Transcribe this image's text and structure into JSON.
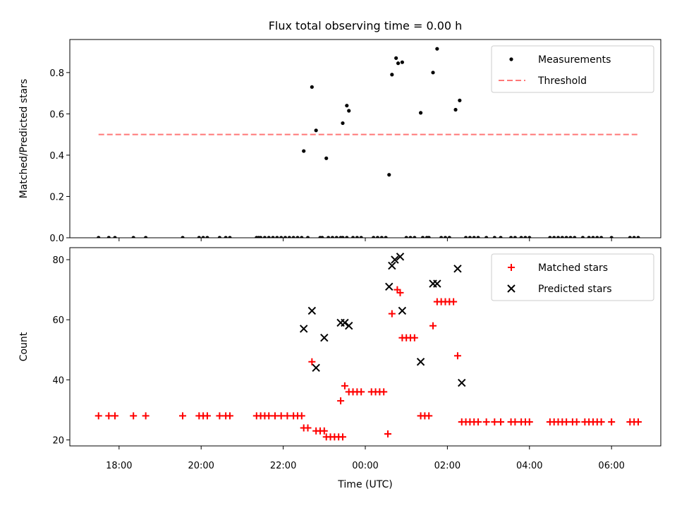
{
  "title": "Flux total observing time = 0.00 h",
  "chart_data": [
    {
      "type": "scatter",
      "ylabel": "Matched/Predicted stars",
      "ylim": [
        0.0,
        0.96
      ],
      "yticks": [
        "0.0",
        "0.2",
        "0.4",
        "0.6",
        "0.8"
      ],
      "legend_position": "top-right",
      "series": [
        {
          "name": "Measurements",
          "marker": "dot",
          "color": "#000000",
          "points": [
            [
              -6.5,
              0
            ],
            [
              -6.25,
              0
            ],
            [
              -6.1,
              0
            ],
            [
              -5.65,
              0
            ],
            [
              -5.35,
              0
            ],
            [
              -4.45,
              0
            ],
            [
              -4.05,
              0
            ],
            [
              -3.95,
              0
            ],
            [
              -3.85,
              0
            ],
            [
              -3.55,
              0
            ],
            [
              -3.4,
              0
            ],
            [
              -3.3,
              0
            ],
            [
              -2.65,
              0
            ],
            [
              -2.6,
              0
            ],
            [
              -2.55,
              0
            ],
            [
              -2.45,
              0
            ],
            [
              -2.35,
              0
            ],
            [
              -2.25,
              0
            ],
            [
              -2.15,
              0
            ],
            [
              -2.05,
              0
            ],
            [
              -1.95,
              0
            ],
            [
              -1.85,
              0
            ],
            [
              -1.75,
              0
            ],
            [
              -1.65,
              0
            ],
            [
              -1.55,
              0
            ],
            [
              -1.5,
              0.42
            ],
            [
              -1.4,
              0
            ],
            [
              -1.3,
              0.73
            ],
            [
              -1.2,
              0.52
            ],
            [
              -1.1,
              0
            ],
            [
              -1.05,
              0
            ],
            [
              -0.95,
              0.385
            ],
            [
              -0.9,
              0
            ],
            [
              -0.8,
              0
            ],
            [
              -0.7,
              0
            ],
            [
              -0.6,
              0
            ],
            [
              -0.55,
              0
            ],
            [
              -0.45,
              0
            ],
            [
              -0.55,
              0.555
            ],
            [
              -0.45,
              0.64
            ],
            [
              -0.4,
              0.615
            ],
            [
              -0.3,
              0
            ],
            [
              -0.2,
              0
            ],
            [
              -0.1,
              0
            ],
            [
              0.2,
              0
            ],
            [
              0.3,
              0
            ],
            [
              0.4,
              0
            ],
            [
              0.5,
              0
            ],
            [
              0.58,
              0.305
            ],
            [
              0.65,
              0.79
            ],
            [
              0.75,
              0.87
            ],
            [
              0.8,
              0.845
            ],
            [
              0.9,
              0.85
            ],
            [
              1.0,
              0
            ],
            [
              1.1,
              0
            ],
            [
              1.2,
              0
            ],
            [
              1.35,
              0.605
            ],
            [
              1.4,
              0
            ],
            [
              1.5,
              0
            ],
            [
              1.55,
              0
            ],
            [
              1.65,
              0.8
            ],
            [
              1.75,
              0.915
            ],
            [
              1.85,
              0
            ],
            [
              1.95,
              0
            ],
            [
              2.05,
              0
            ],
            [
              2.2,
              0.62
            ],
            [
              2.3,
              0.665
            ],
            [
              2.45,
              0
            ],
            [
              2.55,
              0
            ],
            [
              2.65,
              0
            ],
            [
              2.75,
              0
            ],
            [
              2.95,
              0
            ],
            [
              3.15,
              0
            ],
            [
              3.3,
              0
            ],
            [
              3.55,
              0
            ],
            [
              3.65,
              0
            ],
            [
              3.8,
              0
            ],
            [
              3.9,
              0
            ],
            [
              4.0,
              0
            ],
            [
              4.5,
              0
            ],
            [
              4.6,
              0
            ],
            [
              4.7,
              0
            ],
            [
              4.8,
              0
            ],
            [
              4.9,
              0
            ],
            [
              5.0,
              0
            ],
            [
              5.1,
              0
            ],
            [
              5.3,
              0
            ],
            [
              5.45,
              0
            ],
            [
              5.55,
              0
            ],
            [
              5.65,
              0
            ],
            [
              5.75,
              0
            ],
            [
              6.0,
              0
            ],
            [
              6.45,
              0
            ],
            [
              6.55,
              0
            ],
            [
              6.65,
              0
            ]
          ]
        },
        {
          "name": "Threshold",
          "marker": "dashed-line",
          "color": "#ff7777",
          "points": [
            [
              -6.5,
              0.5
            ],
            [
              6.65,
              0.5
            ]
          ]
        }
      ]
    },
    {
      "type": "scatter",
      "xlabel": "Time (UTC)",
      "ylabel": "Count",
      "ylim": [
        18,
        84
      ],
      "yticks": [
        "20",
        "40",
        "60",
        "80"
      ],
      "xticks": [
        "18:00",
        "20:00",
        "22:00",
        "00:00",
        "02:00",
        "04:00",
        "06:00"
      ],
      "legend_position": "top-right",
      "series": [
        {
          "name": "Matched stars",
          "marker": "plus",
          "color": "#ff0000",
          "points": [
            [
              -6.5,
              28
            ],
            [
              -6.25,
              28
            ],
            [
              -6.1,
              28
            ],
            [
              -5.65,
              28
            ],
            [
              -5.35,
              28
            ],
            [
              -4.45,
              28
            ],
            [
              -4.05,
              28
            ],
            [
              -3.95,
              28
            ],
            [
              -3.85,
              28
            ],
            [
              -3.55,
              28
            ],
            [
              -3.4,
              28
            ],
            [
              -3.3,
              28
            ],
            [
              -2.65,
              28
            ],
            [
              -2.55,
              28
            ],
            [
              -2.45,
              28
            ],
            [
              -2.35,
              28
            ],
            [
              -2.2,
              28
            ],
            [
              -2.05,
              28
            ],
            [
              -1.9,
              28
            ],
            [
              -1.75,
              28
            ],
            [
              -1.65,
              28
            ],
            [
              -1.55,
              28
            ],
            [
              -1.5,
              24
            ],
            [
              -1.4,
              24
            ],
            [
              -1.3,
              46
            ],
            [
              -1.2,
              23
            ],
            [
              -1.1,
              23
            ],
            [
              -1.0,
              23
            ],
            [
              -0.95,
              21
            ],
            [
              -0.85,
              21
            ],
            [
              -0.75,
              21
            ],
            [
              -0.65,
              21
            ],
            [
              -0.55,
              21
            ],
            [
              -0.6,
              33
            ],
            [
              -0.5,
              38
            ],
            [
              -0.4,
              36
            ],
            [
              -0.3,
              36
            ],
            [
              -0.2,
              36
            ],
            [
              -0.1,
              36
            ],
            [
              0.15,
              36
            ],
            [
              0.25,
              36
            ],
            [
              0.35,
              36
            ],
            [
              0.45,
              36
            ],
            [
              0.55,
              22
            ],
            [
              0.65,
              62
            ],
            [
              0.78,
              70
            ],
            [
              0.85,
              69
            ],
            [
              0.9,
              54
            ],
            [
              1.0,
              54
            ],
            [
              1.1,
              54
            ],
            [
              1.2,
              54
            ],
            [
              1.35,
              28
            ],
            [
              1.45,
              28
            ],
            [
              1.55,
              28
            ],
            [
              1.65,
              58
            ],
            [
              1.75,
              66
            ],
            [
              1.85,
              66
            ],
            [
              1.95,
              66
            ],
            [
              2.05,
              66
            ],
            [
              2.15,
              66
            ],
            [
              2.25,
              48
            ],
            [
              2.35,
              26
            ],
            [
              2.45,
              26
            ],
            [
              2.55,
              26
            ],
            [
              2.65,
              26
            ],
            [
              2.75,
              26
            ],
            [
              2.95,
              26
            ],
            [
              3.15,
              26
            ],
            [
              3.3,
              26
            ],
            [
              3.55,
              26
            ],
            [
              3.65,
              26
            ],
            [
              3.8,
              26
            ],
            [
              3.9,
              26
            ],
            [
              4.0,
              26
            ],
            [
              4.5,
              26
            ],
            [
              4.6,
              26
            ],
            [
              4.7,
              26
            ],
            [
              4.8,
              26
            ],
            [
              4.9,
              26
            ],
            [
              5.05,
              26
            ],
            [
              5.15,
              26
            ],
            [
              5.35,
              26
            ],
            [
              5.45,
              26
            ],
            [
              5.55,
              26
            ],
            [
              5.65,
              26
            ],
            [
              5.75,
              26
            ],
            [
              6.0,
              26
            ],
            [
              6.45,
              26
            ],
            [
              6.55,
              26
            ],
            [
              6.65,
              26
            ]
          ]
        },
        {
          "name": "Predicted stars",
          "marker": "x",
          "color": "#000000",
          "points": [
            [
              -1.5,
              57
            ],
            [
              -1.3,
              63
            ],
            [
              -1.2,
              44
            ],
            [
              -1.0,
              54
            ],
            [
              -0.6,
              59
            ],
            [
              -0.5,
              59
            ],
            [
              -0.4,
              58
            ],
            [
              0.58,
              71
            ],
            [
              0.65,
              78
            ],
            [
              0.72,
              80
            ],
            [
              0.85,
              81
            ],
            [
              0.9,
              63
            ],
            [
              1.35,
              46
            ],
            [
              1.65,
              72
            ],
            [
              1.75,
              72
            ],
            [
              2.25,
              77
            ],
            [
              2.35,
              39
            ]
          ]
        }
      ]
    }
  ]
}
